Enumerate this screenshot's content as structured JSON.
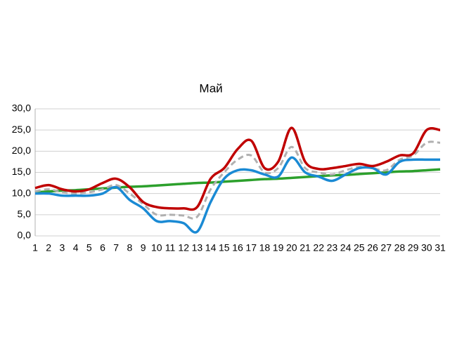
{
  "chart_data": {
    "type": "line",
    "title": "Май",
    "categories": [
      "1",
      "2",
      "3",
      "4",
      "5",
      "6",
      "7",
      "8",
      "9",
      "10",
      "11",
      "12",
      "13",
      "14",
      "15",
      "16",
      "17",
      "18",
      "19",
      "20",
      "21",
      "22",
      "23",
      "24",
      "25",
      "26",
      "27",
      "28",
      "29",
      "30",
      "31"
    ],
    "series": [
      {
        "color": "#2ca02c",
        "style": "solid",
        "values": [
          10.3,
          10.5,
          10.7,
          10.8,
          11.0,
          11.2,
          11.4,
          11.6,
          11.7,
          11.9,
          12.1,
          12.3,
          12.5,
          12.6,
          12.8,
          13.0,
          13.2,
          13.4,
          13.5,
          13.7,
          13.9,
          14.1,
          14.3,
          14.4,
          14.6,
          14.8,
          15.0,
          15.2,
          15.3,
          15.5,
          15.7
        ]
      },
      {
        "color": "#b0b0b0",
        "style": "dashed",
        "values": [
          10.5,
          11,
          10.3,
          10,
          10.3,
          11,
          12,
          10,
          7.5,
          5,
          5,
          4.8,
          4.5,
          11,
          15,
          18,
          19,
          15,
          16,
          21,
          16,
          15,
          14.5,
          15.5,
          16.3,
          16,
          15.5,
          18,
          19,
          22,
          22
        ]
      },
      {
        "color": "#1a8ad4",
        "style": "solid",
        "values": [
          10,
          10,
          9.5,
          9.5,
          9.5,
          10,
          11.5,
          8.5,
          6.5,
          3.5,
          3.5,
          3,
          1,
          8,
          13.5,
          15.5,
          15.5,
          14.5,
          14,
          18.5,
          15,
          14,
          13,
          14.5,
          16,
          16,
          14.5,
          17.5,
          18,
          18,
          18
        ]
      },
      {
        "color": "#c00000",
        "style": "solid",
        "values": [
          11.3,
          12,
          11,
          10.5,
          11,
          12.5,
          13.5,
          11.5,
          8,
          6.8,
          6.5,
          6.5,
          6.8,
          13.5,
          16,
          20.5,
          22.5,
          16,
          17.5,
          25.5,
          17.5,
          15.8,
          16,
          16.5,
          17,
          16.5,
          17.5,
          19,
          19.5,
          25,
          25
        ]
      }
    ],
    "ylim": [
      0,
      30
    ],
    "yticks": [
      {
        "value": 0,
        "label": "0,0"
      },
      {
        "value": 5,
        "label": "5,0"
      },
      {
        "value": 10,
        "label": "10,0"
      },
      {
        "value": 15,
        "label": "15,0"
      },
      {
        "value": 20,
        "label": "20,0"
      },
      {
        "value": 25,
        "label": "25,0"
      },
      {
        "value": 30,
        "label": "30,0"
      }
    ],
    "grid": true
  }
}
